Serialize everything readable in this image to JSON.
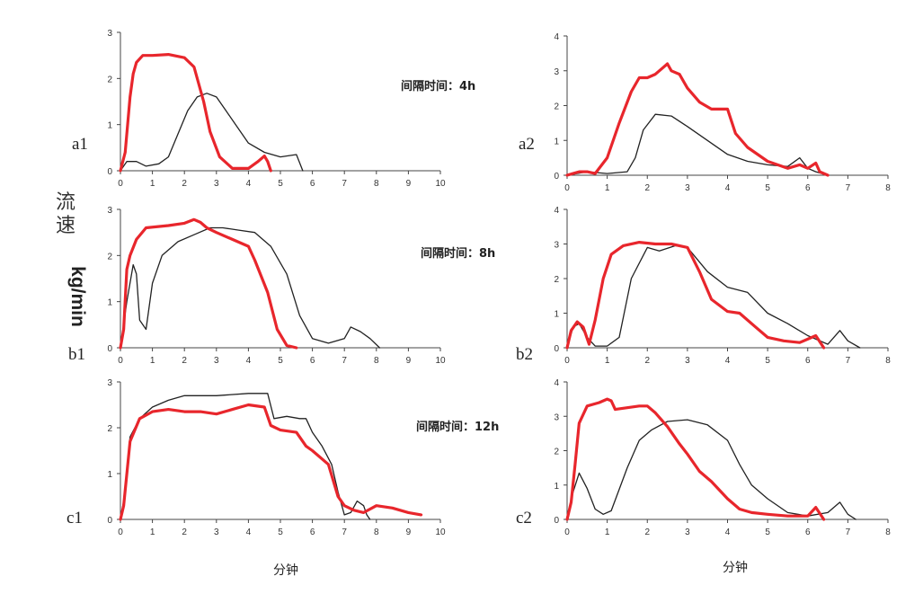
{
  "figure": {
    "y_title": "流速",
    "y_unit": "kg/min",
    "x_title_left": "分钟",
    "x_title_right": "分钟",
    "intervals": [
      "间隔时间：4h",
      "间隔时间：8h",
      "间隔时间：12h"
    ],
    "colors": {
      "red": "#e8262c",
      "black": "#222222"
    }
  },
  "chart_data": [
    {
      "id": "a1",
      "type": "line",
      "label": "a1",
      "xlim": [
        0,
        10
      ],
      "ylim": [
        0,
        3
      ],
      "xticks": [
        "0",
        "1",
        "2",
        "3",
        "4",
        "5",
        "6",
        "7",
        "8",
        "9",
        "10"
      ],
      "yticks": [
        "0",
        "1",
        "2",
        "3"
      ],
      "series": [
        {
          "color": "#e8262c",
          "x": [
            0,
            0.15,
            0.3,
            0.4,
            0.5,
            0.7,
            1,
            1.5,
            2,
            2.3,
            2.6,
            2.8,
            3.1,
            3.5,
            4,
            4.3,
            4.5,
            4.6,
            4.7
          ],
          "y": [
            0,
            0.4,
            1.6,
            2.1,
            2.35,
            2.5,
            2.5,
            2.52,
            2.45,
            2.25,
            1.5,
            0.85,
            0.3,
            0.05,
            0.05,
            0.2,
            0.32,
            0.2,
            0
          ]
        },
        {
          "color": "#222222",
          "x": [
            0,
            0.2,
            0.5,
            0.8,
            1.2,
            1.5,
            1.8,
            2.1,
            2.4,
            2.7,
            3,
            3.3,
            3.6,
            4,
            4.5,
            5,
            5.5,
            5.7
          ],
          "y": [
            0,
            0.2,
            0.2,
            0.1,
            0.15,
            0.3,
            0.8,
            1.3,
            1.6,
            1.68,
            1.6,
            1.3,
            1,
            0.6,
            0.4,
            0.3,
            0.35,
            0
          ]
        }
      ]
    },
    {
      "id": "a2",
      "type": "line",
      "label": "a2",
      "xlim": [
        0,
        8
      ],
      "ylim": [
        0,
        4
      ],
      "xticks": [
        "0",
        "1",
        "2",
        "3",
        "4",
        "5",
        "6",
        "7",
        "8"
      ],
      "yticks": [
        "0",
        "1",
        "2",
        "3",
        "4"
      ],
      "series": [
        {
          "color": "#e8262c",
          "x": [
            0,
            0.3,
            0.5,
            0.7,
            1,
            1.3,
            1.6,
            1.8,
            2,
            2.2,
            2.4,
            2.5,
            2.6,
            2.8,
            3,
            3.3,
            3.6,
            4,
            4.2,
            4.5,
            5,
            5.5,
            5.8,
            6,
            6.2,
            6.3,
            6.5
          ],
          "y": [
            0,
            0.1,
            0.1,
            0.05,
            0.5,
            1.5,
            2.4,
            2.8,
            2.8,
            2.9,
            3.1,
            3.2,
            3,
            2.9,
            2.5,
            2.1,
            1.9,
            1.9,
            1.2,
            0.8,
            0.4,
            0.2,
            0.3,
            0.2,
            0.35,
            0.1,
            0
          ]
        },
        {
          "color": "#222222",
          "x": [
            0,
            0.5,
            1,
            1.5,
            1.7,
            1.9,
            2.2,
            2.6,
            3,
            3.5,
            4,
            4.5,
            5,
            5.5,
            5.8,
            6,
            6.2,
            6.5
          ],
          "y": [
            0,
            0.1,
            0.05,
            0.1,
            0.5,
            1.3,
            1.75,
            1.7,
            1.4,
            1,
            0.6,
            0.4,
            0.3,
            0.25,
            0.5,
            0.2,
            0.1,
            0
          ]
        }
      ]
    },
    {
      "id": "b1",
      "type": "line",
      "label": "b1",
      "xlim": [
        0,
        10
      ],
      "ylim": [
        0,
        3
      ],
      "xticks": [
        "0",
        "1",
        "2",
        "3",
        "4",
        "5",
        "6",
        "7",
        "8",
        "9",
        "10"
      ],
      "yticks": [
        "0",
        "1",
        "2",
        "3"
      ],
      "series": [
        {
          "color": "#e8262c",
          "x": [
            0,
            0.1,
            0.2,
            0.3,
            0.5,
            0.8,
            1.5,
            2,
            2.3,
            2.5,
            2.7,
            3,
            3.5,
            4,
            4.2,
            4.6,
            4.9,
            5.2,
            5.5
          ],
          "y": [
            0,
            0.4,
            1.7,
            2.0,
            2.35,
            2.6,
            2.65,
            2.7,
            2.78,
            2.72,
            2.6,
            2.5,
            2.35,
            2.2,
            1.9,
            1.2,
            0.4,
            0.05,
            0
          ]
        },
        {
          "color": "#222222",
          "x": [
            0,
            0.2,
            0.4,
            0.5,
            0.6,
            0.8,
            1,
            1.3,
            1.8,
            2.3,
            2.8,
            3.2,
            3.7,
            4.2,
            4.7,
            5.2,
            5.6,
            6,
            6.5,
            7,
            7.2,
            7.5,
            7.8,
            8.1
          ],
          "y": [
            0,
            1.0,
            1.8,
            1.6,
            0.6,
            0.4,
            1.4,
            2.0,
            2.3,
            2.45,
            2.6,
            2.6,
            2.55,
            2.5,
            2.2,
            1.6,
            0.7,
            0.2,
            0.1,
            0.2,
            0.45,
            0.35,
            0.2,
            0
          ]
        }
      ]
    },
    {
      "id": "b2",
      "type": "line",
      "label": "b2",
      "xlim": [
        0,
        8
      ],
      "ylim": [
        0,
        4
      ],
      "xticks": [
        "0",
        "1",
        "2",
        "3",
        "4",
        "5",
        "6",
        "7",
        "8"
      ],
      "yticks": [
        "0",
        "1",
        "2",
        "3",
        "4"
      ],
      "series": [
        {
          "color": "#e8262c",
          "x": [
            0,
            0.1,
            0.25,
            0.4,
            0.55,
            0.7,
            0.9,
            1.1,
            1.4,
            1.8,
            2.2,
            2.6,
            3,
            3.3,
            3.6,
            4,
            4.3,
            4.7,
            5,
            5.4,
            5.8,
            6.2,
            6.4
          ],
          "y": [
            0,
            0.5,
            0.75,
            0.6,
            0.1,
            0.8,
            2,
            2.7,
            2.95,
            3.05,
            3,
            3,
            2.9,
            2.2,
            1.4,
            1.05,
            1,
            0.6,
            0.3,
            0.2,
            0.15,
            0.35,
            0
          ]
        },
        {
          "color": "#222222",
          "x": [
            0,
            0.15,
            0.3,
            0.5,
            0.7,
            1,
            1.3,
            1.6,
            2,
            2.3,
            2.7,
            3,
            3.5,
            4,
            4.5,
            5,
            5.5,
            6,
            6.5,
            6.8,
            7,
            7.3
          ],
          "y": [
            0,
            0.6,
            0.7,
            0.3,
            0.05,
            0.05,
            0.3,
            2,
            2.9,
            2.8,
            2.95,
            2.9,
            2.2,
            1.75,
            1.6,
            1,
            0.7,
            0.35,
            0.1,
            0.5,
            0.2,
            0
          ]
        }
      ]
    },
    {
      "id": "c1",
      "type": "line",
      "label": "c1",
      "xlim": [
        0,
        10
      ],
      "ylim": [
        0,
        3
      ],
      "xticks": [
        "0",
        "1",
        "2",
        "3",
        "4",
        "5",
        "6",
        "7",
        "8",
        "9",
        "10"
      ],
      "yticks": [
        "0",
        "1",
        "2",
        "3"
      ],
      "series": [
        {
          "color": "#e8262c",
          "x": [
            0,
            0.1,
            0.3,
            0.6,
            1,
            1.5,
            2,
            2.5,
            3,
            3.5,
            4,
            4.5,
            4.7,
            5,
            5.5,
            5.8,
            6,
            6.5,
            6.8,
            7,
            7.3,
            7.6,
            8,
            8.5,
            9,
            9.4
          ],
          "y": [
            0,
            0.3,
            1.7,
            2.2,
            2.35,
            2.4,
            2.35,
            2.35,
            2.3,
            2.4,
            2.5,
            2.45,
            2.05,
            1.95,
            1.9,
            1.6,
            1.5,
            1.2,
            0.5,
            0.3,
            0.2,
            0.15,
            0.3,
            0.25,
            0.15,
            0.1
          ]
        },
        {
          "color": "#222222",
          "x": [
            0,
            0.1,
            0.3,
            0.6,
            1,
            1.5,
            2,
            3,
            4,
            4.6,
            4.8,
            5.2,
            5.6,
            5.8,
            6,
            6.3,
            6.6,
            6.8,
            7,
            7.2,
            7.4,
            7.6,
            7.7,
            7.8
          ],
          "y": [
            0,
            0.4,
            1.8,
            2.2,
            2.45,
            2.6,
            2.7,
            2.7,
            2.75,
            2.75,
            2.2,
            2.25,
            2.2,
            2.2,
            1.9,
            1.6,
            1.2,
            0.6,
            0.1,
            0.15,
            0.4,
            0.3,
            0.1,
            0
          ]
        }
      ]
    },
    {
      "id": "c2",
      "type": "line",
      "label": "c2",
      "xlim": [
        0,
        8
      ],
      "ylim": [
        0,
        4
      ],
      "xticks": [
        "0",
        "1",
        "2",
        "3",
        "4",
        "5",
        "6",
        "7",
        "8"
      ],
      "yticks": [
        "0",
        "1",
        "2",
        "3",
        "4"
      ],
      "series": [
        {
          "color": "#e8262c",
          "x": [
            0,
            0.1,
            0.2,
            0.3,
            0.5,
            0.8,
            1,
            1.1,
            1.2,
            1.5,
            1.8,
            2,
            2.2,
            2.5,
            2.8,
            3,
            3.3,
            3.6,
            4,
            4.3,
            4.6,
            5,
            5.5,
            6,
            6.2,
            6.4
          ],
          "y": [
            0,
            0.5,
            1.6,
            2.8,
            3.3,
            3.4,
            3.5,
            3.45,
            3.2,
            3.25,
            3.3,
            3.3,
            3.1,
            2.7,
            2.2,
            1.9,
            1.4,
            1.1,
            0.6,
            0.3,
            0.2,
            0.15,
            0.1,
            0.1,
            0.35,
            0
          ]
        },
        {
          "color": "#222222",
          "x": [
            0,
            0.15,
            0.3,
            0.5,
            0.7,
            0.9,
            1.1,
            1.5,
            1.8,
            2.1,
            2.5,
            3,
            3.5,
            4,
            4.3,
            4.6,
            5,
            5.5,
            6,
            6.5,
            6.8,
            7,
            7.2
          ],
          "y": [
            0,
            0.8,
            1.35,
            0.9,
            0.3,
            0.15,
            0.25,
            1.5,
            2.3,
            2.6,
            2.85,
            2.9,
            2.75,
            2.3,
            1.6,
            1,
            0.6,
            0.2,
            0.1,
            0.2,
            0.5,
            0.15,
            0
          ]
        }
      ]
    }
  ]
}
